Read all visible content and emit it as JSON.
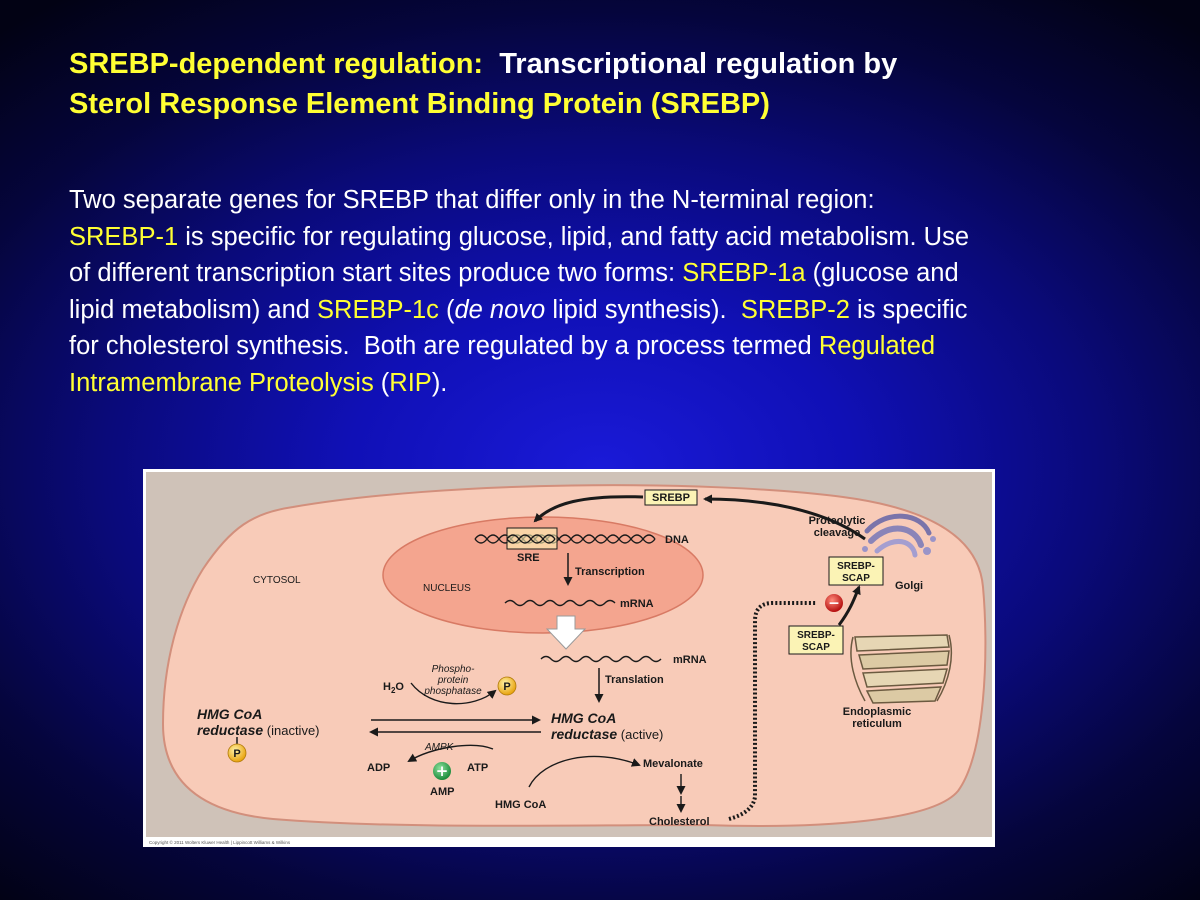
{
  "title": {
    "line1_highlight": "SREBP-dependent regulation:",
    "line1_rest": "  Transcriptional regulation by",
    "line2": "Sterol Response Element Binding Protein (SREBP)"
  },
  "body": {
    "l1": "Two separate genes for SREBP that differ only in the N-terminal region:",
    "l2_hl": "SREBP-1",
    "l2_rest": " is specific for regulating glucose, lipid, and fatty acid metabolism. Use",
    "l3_a": "of different transcription start sites produce two forms: ",
    "l3_hl": "SREBP-1a",
    "l3_b": " (glucose and",
    "l4_a": "lipid metabolism) and ",
    "l4_hl1": "SREBP-1c",
    "l4_b": " (",
    "l4_italic": "de novo",
    "l4_c": " lipid synthesis).  ",
    "l4_hl2": "SREBP-2",
    "l4_d": " is specific",
    "l5_a": "for cholesterol synthesis.  Both are regulated by a process termed ",
    "l5_hl": "Regulated",
    "l6_hl": "Intramembrane Proteolysis",
    "l6_a": " (",
    "l6_hl2": "RIP",
    "l6_b": ")."
  },
  "diagram": {
    "srebp": "SREBP",
    "proteolytic_1": "Proteolytic",
    "proteolytic_2": "cleavage",
    "dna": "DNA",
    "sre": "SRE",
    "transcription": "Transcription",
    "nucleus": "NUCLEUS",
    "mrna_nuc": "mRNA",
    "cytosol": "CYTOSOL",
    "srebp_scap_golgi_1": "SREBP-",
    "srebp_scap_golgi_2": "SCAP",
    "golgi": "Golgi",
    "srebp_scap_er_1": "SREBP-",
    "srebp_scap_er_2": "SCAP",
    "er_1": "Endoplasmic",
    "er_2": "reticulum",
    "mrna_cyt": "mRNA",
    "translation": "Translation",
    "phospho_1": "Phospho-",
    "phospho_2": "protein",
    "phospho_3": "phosphatase",
    "h2o_h": "H",
    "h2o_sub": "2",
    "h2o_o": "O",
    "p_label": "P",
    "hmg_inactive_1": "HMG CoA",
    "hmg_inactive_2": "reductase",
    "inactive": " (inactive)",
    "hmg_active_1": "HMG CoA",
    "hmg_active_2": "reductase",
    "active": " (active)",
    "ampk": "AMPK",
    "adp": "ADP",
    "atp": "ATP",
    "amp": "AMP",
    "plus": "+",
    "minus": "−",
    "mevalonate": "Mevalonate",
    "hmg_coa": "HMG CoA",
    "cholesterol": "Cholesterol",
    "copyright": "Copyright © 2011 Wolters Kluwer Health | Lippincott Williams & Wilkins"
  },
  "colors": {
    "background": "#0c0c9c",
    "title_highlight": "#ffff33",
    "cytosol_fill": "#f8cbb8",
    "nucleus_fill": "#f4a58f",
    "frame": "#cfc2b8",
    "label_box": "#fbf3b5",
    "phosphate": "#f5c23a",
    "activator": "#2fa84f",
    "inhibitor": "#d42a2a"
  }
}
